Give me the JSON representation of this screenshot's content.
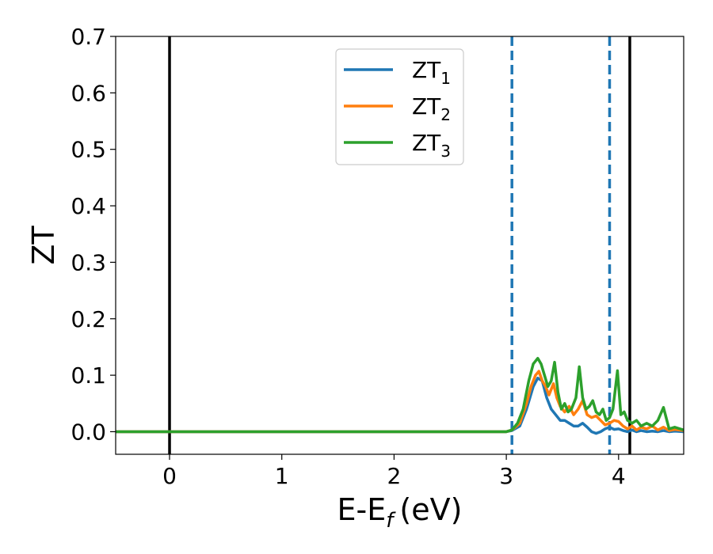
{
  "chart_data": {
    "type": "line",
    "xlabel": "E-E",
    "xlabel_sub": "f",
    "xlabel_unit": "(eV)",
    "ylabel": "ZT",
    "xlim": [
      -0.48,
      4.58
    ],
    "ylim": [
      -0.04,
      0.7
    ],
    "xticks": [
      0,
      1,
      2,
      3,
      4
    ],
    "xtick_labels": [
      "0",
      "1",
      "2",
      "3",
      "4"
    ],
    "yticks": [
      0.0,
      0.1,
      0.2,
      0.3,
      0.4,
      0.5,
      0.6,
      0.7
    ],
    "ytick_labels": [
      "0.0",
      "0.1",
      "0.2",
      "0.3",
      "0.4",
      "0.5",
      "0.6",
      "0.7"
    ],
    "grid": false,
    "legend_position": "top-center",
    "vlines": [
      {
        "x": 0.0,
        "style": "solid",
        "color": "#000000"
      },
      {
        "x": 3.05,
        "style": "dashed",
        "color": "#1f77b4"
      },
      {
        "x": 3.92,
        "style": "dashed",
        "color": "#1f77b4"
      },
      {
        "x": 4.1,
        "style": "solid",
        "color": "#000000"
      }
    ],
    "series": [
      {
        "name": "ZT",
        "subscript": "1",
        "color": "#1f77b4",
        "x": [
          -0.48,
          3.0,
          3.05,
          3.12,
          3.18,
          3.24,
          3.28,
          3.32,
          3.36,
          3.4,
          3.44,
          3.48,
          3.52,
          3.56,
          3.6,
          3.64,
          3.68,
          3.72,
          3.76,
          3.8,
          3.84,
          3.88,
          3.92,
          3.96,
          4.0,
          4.04,
          4.08,
          4.12,
          4.16,
          4.2,
          4.25,
          4.3,
          4.35,
          4.4,
          4.45,
          4.5,
          4.58
        ],
        "y": [
          0.0,
          0.0,
          0.002,
          0.01,
          0.04,
          0.08,
          0.095,
          0.09,
          0.06,
          0.04,
          0.03,
          0.02,
          0.02,
          0.015,
          0.01,
          0.01,
          0.015,
          0.008,
          0.0,
          -0.003,
          0.0,
          0.005,
          0.008,
          0.004,
          0.005,
          0.002,
          0.0,
          0.003,
          0.0,
          0.002,
          0.0,
          0.001,
          0.0,
          0.002,
          0.0,
          0.001,
          0.0
        ]
      },
      {
        "name": "ZT",
        "subscript": "2",
        "color": "#ff7f0e",
        "x": [
          -0.48,
          3.0,
          3.05,
          3.12,
          3.18,
          3.22,
          3.26,
          3.29,
          3.32,
          3.35,
          3.38,
          3.42,
          3.45,
          3.48,
          3.52,
          3.56,
          3.6,
          3.64,
          3.68,
          3.72,
          3.76,
          3.8,
          3.84,
          3.88,
          3.92,
          3.96,
          4.0,
          4.04,
          4.08,
          4.12,
          4.16,
          4.2,
          4.25,
          4.3,
          4.35,
          4.4,
          4.45,
          4.5,
          4.58
        ],
        "y": [
          0.0,
          0.0,
          0.003,
          0.015,
          0.05,
          0.08,
          0.1,
          0.107,
          0.09,
          0.08,
          0.065,
          0.085,
          0.06,
          0.045,
          0.035,
          0.045,
          0.03,
          0.04,
          0.055,
          0.03,
          0.025,
          0.028,
          0.02,
          0.012,
          0.015,
          0.02,
          0.018,
          0.01,
          0.005,
          0.01,
          0.003,
          0.008,
          0.005,
          0.01,
          0.003,
          0.008,
          0.002,
          0.004,
          0.002
        ]
      },
      {
        "name": "ZT",
        "subscript": "3",
        "color": "#2ca02c",
        "x": [
          -0.48,
          3.0,
          3.05,
          3.1,
          3.15,
          3.2,
          3.24,
          3.28,
          3.31,
          3.34,
          3.37,
          3.4,
          3.43,
          3.46,
          3.49,
          3.52,
          3.55,
          3.58,
          3.62,
          3.65,
          3.68,
          3.71,
          3.74,
          3.77,
          3.8,
          3.83,
          3.86,
          3.89,
          3.92,
          3.95,
          3.99,
          4.02,
          4.05,
          4.08,
          4.12,
          4.16,
          4.2,
          4.25,
          4.3,
          4.35,
          4.4,
          4.45,
          4.5,
          4.58
        ],
        "y": [
          0.0,
          0.0,
          0.003,
          0.015,
          0.04,
          0.09,
          0.12,
          0.13,
          0.12,
          0.1,
          0.08,
          0.09,
          0.123,
          0.07,
          0.04,
          0.05,
          0.035,
          0.04,
          0.06,
          0.115,
          0.06,
          0.04,
          0.045,
          0.055,
          0.035,
          0.03,
          0.04,
          0.02,
          0.025,
          0.04,
          0.108,
          0.03,
          0.035,
          0.02,
          0.015,
          0.02,
          0.01,
          0.015,
          0.01,
          0.02,
          0.043,
          0.005,
          0.008,
          0.003
        ]
      }
    ]
  }
}
